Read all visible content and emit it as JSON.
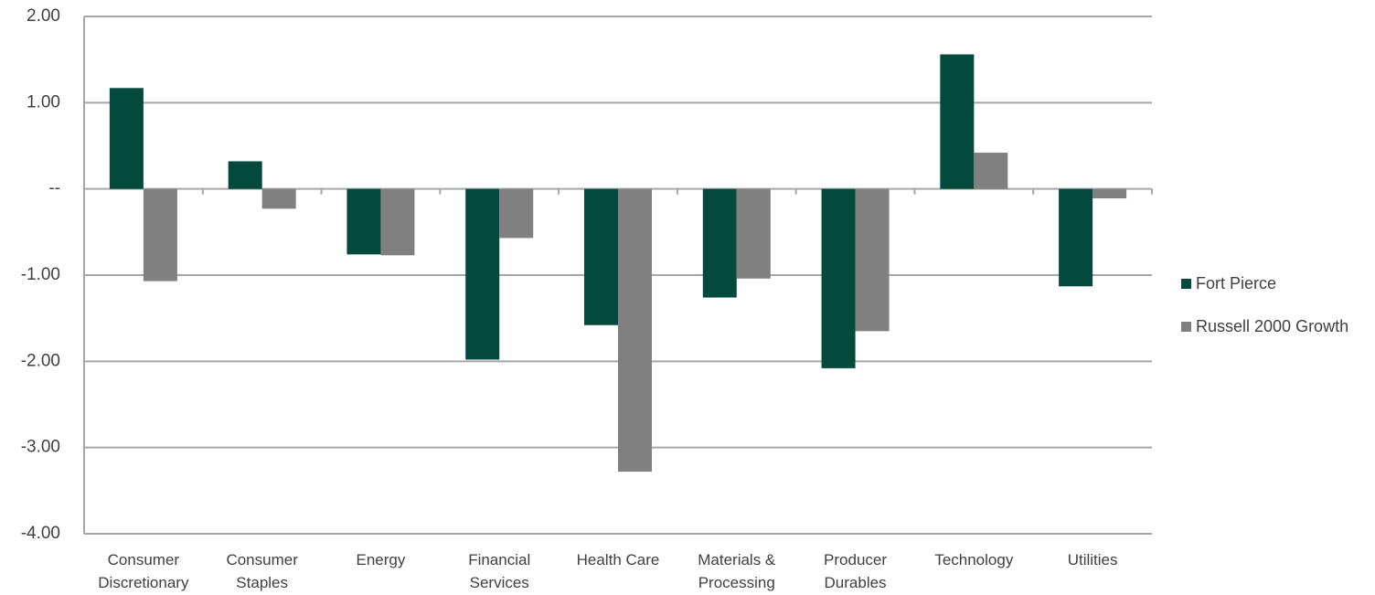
{
  "chart_data": {
    "type": "bar",
    "categories": [
      "Consumer Discretionary",
      "Consumer Staples",
      "Energy",
      "Financial Services",
      "Health Care",
      "Materials & Processing",
      "Producer Durables",
      "Technology",
      "Utilities"
    ],
    "series": [
      {
        "name": "Fort Pierce",
        "color": "#034a3c",
        "values": [
          1.17,
          0.32,
          -0.76,
          -1.98,
          -1.58,
          -1.26,
          -2.08,
          1.56,
          -1.13
        ]
      },
      {
        "name": "Russell 2000 Growth",
        "color": "#808080",
        "values": [
          -1.07,
          -0.23,
          -0.77,
          -0.57,
          -3.28,
          -1.04,
          -1.65,
          0.42,
          -0.11
        ]
      }
    ],
    "ylim": [
      -4,
      2
    ],
    "yticks": [
      {
        "value": -4,
        "label": "-4.00"
      },
      {
        "value": -3,
        "label": "-3.00"
      },
      {
        "value": -2,
        "label": "-2.00"
      },
      {
        "value": -1,
        "label": "-1.00"
      },
      {
        "value": 0,
        "label": "--"
      },
      {
        "value": 1,
        "label": "1.00"
      },
      {
        "value": 2,
        "label": "2.00"
      }
    ],
    "grid": true,
    "legend": "right"
  }
}
